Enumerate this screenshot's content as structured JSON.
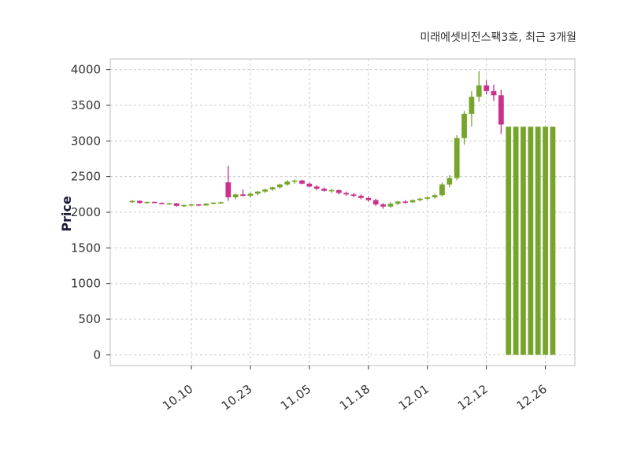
{
  "chart_data": {
    "type": "candlestick",
    "title": "미래에셋비전스팩3호, 최근 3개월",
    "title_color": "#8b1a1a",
    "ylabel": "Price",
    "y_ticks": [
      0,
      500,
      1000,
      1500,
      2000,
      2500,
      3000,
      3500,
      4000
    ],
    "ylim": [
      -150,
      4150
    ],
    "x_tick_labels": [
      "10.10",
      "10.23",
      "11.05",
      "11.18",
      "12.01",
      "12.12",
      "12.26"
    ],
    "x_tick_indices": [
      8,
      16,
      24,
      32,
      40,
      48,
      56
    ],
    "grid": true,
    "legend_position": "none",
    "colors": {
      "up": "#77a52b",
      "down": "#c9318c",
      "grid": "#cccccc",
      "border": "#c8c8c8",
      "axis_text": "#333333"
    },
    "candles": [
      [
        2140,
        2170,
        2130,
        2160
      ],
      [
        2160,
        2165,
        2120,
        2130
      ],
      [
        2130,
        2150,
        2120,
        2145
      ],
      [
        2145,
        2150,
        2125,
        2130
      ],
      [
        2130,
        2140,
        2110,
        2120
      ],
      [
        2120,
        2135,
        2105,
        2125
      ],
      [
        2125,
        2130,
        2080,
        2090
      ],
      [
        2090,
        2110,
        2075,
        2100
      ],
      [
        2100,
        2120,
        2090,
        2110
      ],
      [
        2110,
        2115,
        2085,
        2095
      ],
      [
        2095,
        2130,
        2090,
        2120
      ],
      [
        2120,
        2140,
        2110,
        2135
      ],
      [
        2135,
        2150,
        2120,
        2140
      ],
      [
        2420,
        2650,
        2160,
        2210
      ],
      [
        2210,
        2260,
        2180,
        2250
      ],
      [
        2250,
        2320,
        2220,
        2230
      ],
      [
        2230,
        2280,
        2210,
        2260
      ],
      [
        2260,
        2300,
        2240,
        2290
      ],
      [
        2290,
        2330,
        2270,
        2320
      ],
      [
        2320,
        2360,
        2300,
        2350
      ],
      [
        2350,
        2400,
        2330,
        2390
      ],
      [
        2390,
        2450,
        2370,
        2430
      ],
      [
        2430,
        2460,
        2400,
        2445
      ],
      [
        2445,
        2455,
        2390,
        2400
      ],
      [
        2400,
        2420,
        2350,
        2360
      ],
      [
        2360,
        2380,
        2310,
        2330
      ],
      [
        2330,
        2350,
        2290,
        2300
      ],
      [
        2300,
        2330,
        2270,
        2310
      ],
      [
        2310,
        2320,
        2250,
        2270
      ],
      [
        2270,
        2290,
        2230,
        2250
      ],
      [
        2250,
        2270,
        2210,
        2230
      ],
      [
        2230,
        2250,
        2180,
        2200
      ],
      [
        2200,
        2220,
        2150,
        2170
      ],
      [
        2170,
        2190,
        2090,
        2110
      ],
      [
        2110,
        2130,
        2050,
        2080
      ],
      [
        2080,
        2140,
        2060,
        2120
      ],
      [
        2120,
        2160,
        2100,
        2150
      ],
      [
        2150,
        2170,
        2120,
        2140
      ],
      [
        2140,
        2180,
        2130,
        2170
      ],
      [
        2170,
        2200,
        2150,
        2190
      ],
      [
        2190,
        2220,
        2170,
        2210
      ],
      [
        2210,
        2260,
        2190,
        2240
      ],
      [
        2240,
        2420,
        2220,
        2390
      ],
      [
        2390,
        2520,
        2350,
        2480
      ],
      [
        2480,
        3080,
        2450,
        3040
      ],
      [
        3040,
        3420,
        2950,
        3380
      ],
      [
        3380,
        3700,
        3200,
        3620
      ],
      [
        3620,
        3980,
        3550,
        3780
      ],
      [
        3780,
        3850,
        3650,
        3700
      ],
      [
        3700,
        3790,
        3560,
        3640
      ],
      [
        3640,
        3720,
        3100,
        3230
      ],
      [
        0,
        3200,
        0,
        3200
      ],
      [
        0,
        3200,
        0,
        3200
      ],
      [
        0,
        3200,
        0,
        3200
      ],
      [
        0,
        3200,
        0,
        3200
      ],
      [
        0,
        3200,
        0,
        3200
      ],
      [
        0,
        3200,
        0,
        3200
      ],
      [
        0,
        3200,
        0,
        3200
      ]
    ]
  }
}
